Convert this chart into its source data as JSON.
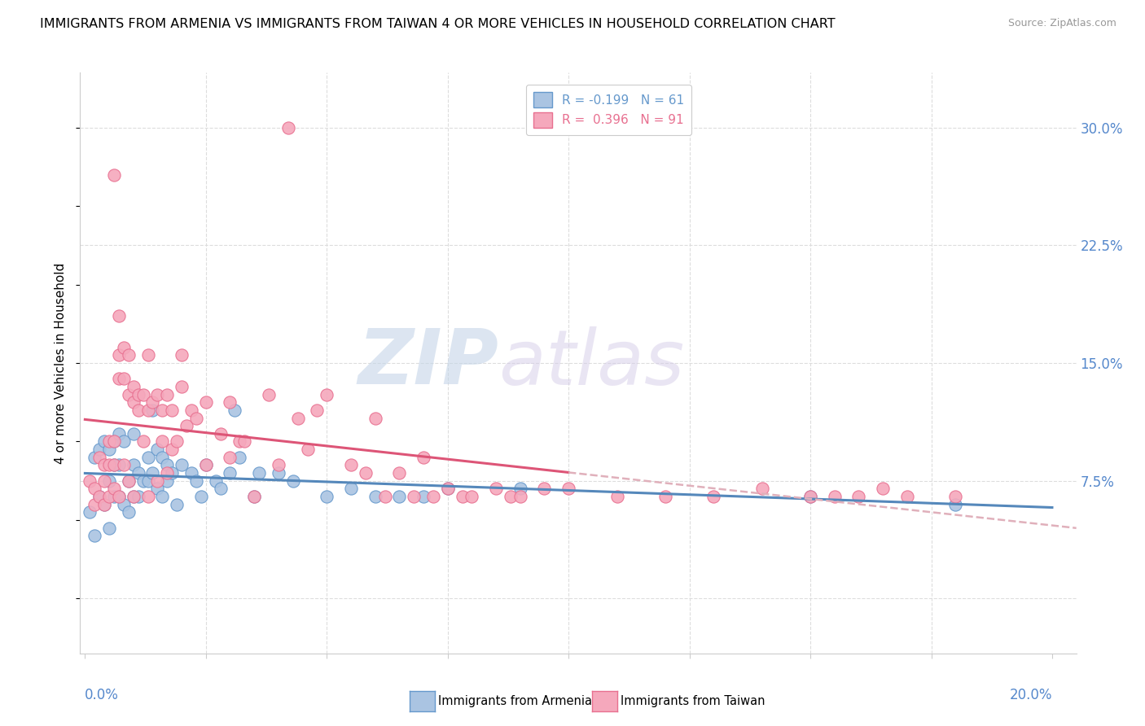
{
  "title": "IMMIGRANTS FROM ARMENIA VS IMMIGRANTS FROM TAIWAN 4 OR MORE VEHICLES IN HOUSEHOLD CORRELATION CHART",
  "source": "Source: ZipAtlas.com",
  "ylabel": "4 or more Vehicles in Household",
  "y_tick_labels": [
    "",
    "7.5%",
    "15.0%",
    "22.5%",
    "30.0%"
  ],
  "y_tick_values": [
    0.0,
    0.075,
    0.15,
    0.225,
    0.3
  ],
  "x_lim": [
    -0.001,
    0.205
  ],
  "y_lim": [
    -0.035,
    0.335
  ],
  "armenia_R": -0.199,
  "armenia_N": 61,
  "taiwan_R": 0.396,
  "taiwan_N": 91,
  "armenia_color": "#aac4e2",
  "taiwan_color": "#f5a8bc",
  "armenia_edge_color": "#6699cc",
  "taiwan_edge_color": "#e87090",
  "armenia_line_color": "#5588bb",
  "taiwan_line_color": "#dd5577",
  "trend_dashed_color": "#e0b0bb",
  "background_color": "#ffffff",
  "watermark_color": "#d0dff0",
  "watermark_color2": "#d0c8e8",
  "title_fontsize": 11.5,
  "source_fontsize": 9,
  "legend_fontsize": 11,
  "axis_label_fontsize": 11,
  "tick_label_color": "#5588cc",
  "grid_color": "#dddddd",
  "scatter_size": 120,
  "legend_label_armenia": "R = -0.199   N = 61",
  "legend_label_taiwan": "R =  0.396   N = 91",
  "bottom_label_armenia": "Immigrants from Armenia",
  "bottom_label_taiwan": "Immigrants from Taiwan",
  "armenia_x": [
    0.001,
    0.002,
    0.002,
    0.003,
    0.003,
    0.004,
    0.004,
    0.005,
    0.005,
    0.005,
    0.006,
    0.006,
    0.006,
    0.007,
    0.007,
    0.007,
    0.008,
    0.008,
    0.009,
    0.009,
    0.01,
    0.01,
    0.01,
    0.011,
    0.011,
    0.012,
    0.013,
    0.013,
    0.014,
    0.014,
    0.015,
    0.015,
    0.016,
    0.016,
    0.017,
    0.017,
    0.018,
    0.019,
    0.02,
    0.022,
    0.023,
    0.024,
    0.025,
    0.027,
    0.028,
    0.03,
    0.031,
    0.032,
    0.035,
    0.036,
    0.04,
    0.043,
    0.05,
    0.055,
    0.06,
    0.065,
    0.07,
    0.075,
    0.09,
    0.15,
    0.18
  ],
  "armenia_y": [
    0.055,
    0.09,
    0.04,
    0.095,
    0.065,
    0.1,
    0.06,
    0.095,
    0.075,
    0.045,
    0.1,
    0.085,
    0.065,
    0.105,
    0.085,
    0.065,
    0.1,
    0.06,
    0.075,
    0.055,
    0.105,
    0.085,
    0.065,
    0.08,
    0.065,
    0.075,
    0.09,
    0.075,
    0.12,
    0.08,
    0.095,
    0.07,
    0.09,
    0.065,
    0.085,
    0.075,
    0.08,
    0.06,
    0.085,
    0.08,
    0.075,
    0.065,
    0.085,
    0.075,
    0.07,
    0.08,
    0.12,
    0.09,
    0.065,
    0.08,
    0.08,
    0.075,
    0.065,
    0.07,
    0.065,
    0.065,
    0.065,
    0.07,
    0.07,
    0.065,
    0.06
  ],
  "taiwan_x": [
    0.001,
    0.002,
    0.002,
    0.003,
    0.003,
    0.004,
    0.004,
    0.004,
    0.005,
    0.005,
    0.005,
    0.006,
    0.006,
    0.006,
    0.006,
    0.007,
    0.007,
    0.007,
    0.007,
    0.008,
    0.008,
    0.008,
    0.009,
    0.009,
    0.009,
    0.01,
    0.01,
    0.01,
    0.011,
    0.011,
    0.012,
    0.012,
    0.013,
    0.013,
    0.013,
    0.014,
    0.015,
    0.015,
    0.016,
    0.016,
    0.017,
    0.017,
    0.018,
    0.018,
    0.019,
    0.02,
    0.02,
    0.021,
    0.022,
    0.023,
    0.025,
    0.025,
    0.028,
    0.03,
    0.03,
    0.032,
    0.033,
    0.035,
    0.038,
    0.04,
    0.042,
    0.044,
    0.046,
    0.048,
    0.05,
    0.055,
    0.058,
    0.06,
    0.062,
    0.065,
    0.068,
    0.07,
    0.072,
    0.075,
    0.078,
    0.08,
    0.085,
    0.088,
    0.09,
    0.095,
    0.1,
    0.11,
    0.12,
    0.13,
    0.14,
    0.15,
    0.155,
    0.16,
    0.165,
    0.17,
    0.18
  ],
  "taiwan_y": [
    0.075,
    0.07,
    0.06,
    0.09,
    0.065,
    0.085,
    0.075,
    0.06,
    0.1,
    0.085,
    0.065,
    0.27,
    0.1,
    0.085,
    0.07,
    0.18,
    0.155,
    0.14,
    0.065,
    0.16,
    0.14,
    0.085,
    0.155,
    0.13,
    0.075,
    0.135,
    0.125,
    0.065,
    0.13,
    0.12,
    0.13,
    0.1,
    0.155,
    0.12,
    0.065,
    0.125,
    0.13,
    0.075,
    0.12,
    0.1,
    0.13,
    0.08,
    0.12,
    0.095,
    0.1,
    0.155,
    0.135,
    0.11,
    0.12,
    0.115,
    0.125,
    0.085,
    0.105,
    0.125,
    0.09,
    0.1,
    0.1,
    0.065,
    0.13,
    0.085,
    0.3,
    0.115,
    0.095,
    0.12,
    0.13,
    0.085,
    0.08,
    0.115,
    0.065,
    0.08,
    0.065,
    0.09,
    0.065,
    0.07,
    0.065,
    0.065,
    0.07,
    0.065,
    0.065,
    0.07,
    0.07,
    0.065,
    0.065,
    0.065,
    0.07,
    0.065,
    0.065,
    0.065,
    0.07,
    0.065,
    0.065
  ]
}
